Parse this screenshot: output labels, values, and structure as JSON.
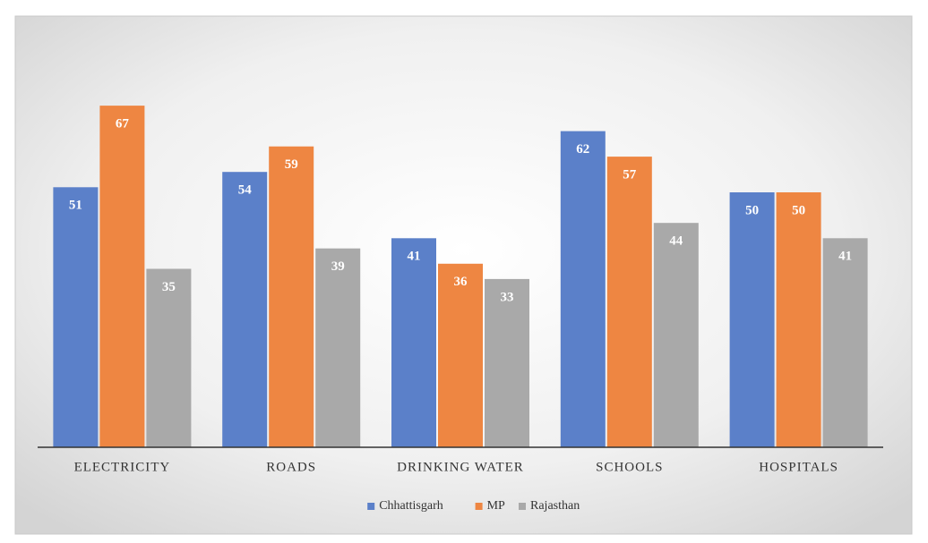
{
  "chart_data": {
    "type": "bar",
    "categories": [
      "ELECTRICITY",
      "ROADS",
      "DRINKING WATER",
      "SCHOOLS",
      "HOSPITALS"
    ],
    "series": [
      {
        "name": "Chhattisgarh",
        "color": "#5b80c9",
        "values": [
          51,
          54,
          41,
          62,
          50
        ]
      },
      {
        "name": "MP",
        "color": "#ee8642",
        "values": [
          67,
          59,
          36,
          57,
          50
        ]
      },
      {
        "name": "Rajasthan",
        "color": "#a9a9a9",
        "values": [
          35,
          39,
          33,
          44,
          41
        ]
      }
    ],
    "ylim": [
      0,
      80
    ],
    "legend": "bottom"
  }
}
